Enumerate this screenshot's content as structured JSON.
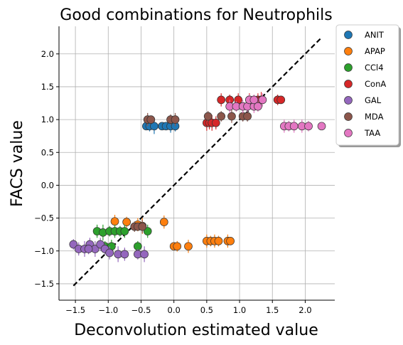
{
  "chart_data": {
    "type": "scatter",
    "title": "Good combinations for Neutrophils",
    "xlabel": "Deconvolution estimated value",
    "ylabel": "FACS value",
    "xlim": [
      -1.75,
      2.45
    ],
    "ylim": [
      -1.75,
      2.42
    ],
    "xticks": [
      -1.5,
      -1.0,
      -0.5,
      0.0,
      0.5,
      1.0,
      1.5,
      2.0
    ],
    "xtick_labels": [
      "−1.5",
      "−1.0",
      "−0.5",
      "0.0",
      "0.5",
      "1.0",
      "1.5",
      "2.0"
    ],
    "yticks": [
      -1.5,
      -1.0,
      -0.5,
      0.0,
      0.5,
      1.0,
      1.5,
      2.0
    ],
    "ytick_labels": [
      "−1.5",
      "−1.0",
      "−0.5",
      "0.0",
      "0.5",
      "1.0",
      "1.5",
      "2.0"
    ],
    "grid": true,
    "legend_position": "outside-top-right",
    "reference_line": {
      "style": "dashed",
      "color": "#000000",
      "x": [
        -1.53,
        2.25
      ],
      "y": [
        -1.53,
        2.25
      ]
    },
    "series": [
      {
        "name": "ANIT",
        "color": "#1f77b4",
        "points": [
          {
            "x": -0.42,
            "y": 0.9,
            "err": 0.05
          },
          {
            "x": -0.37,
            "y": 0.9,
            "err": 0.08
          },
          {
            "x": -0.3,
            "y": 0.9,
            "err": 0.12
          },
          {
            "x": -0.18,
            "y": 0.9,
            "err": 0.06
          },
          {
            "x": -0.12,
            "y": 0.9,
            "err": 0.06
          },
          {
            "x": -0.05,
            "y": 0.9,
            "err": 0.1
          },
          {
            "x": 0.02,
            "y": 0.9,
            "err": 0.08
          }
        ]
      },
      {
        "name": "APAP",
        "color": "#ff7f0e",
        "points": [
          {
            "x": -0.9,
            "y": -0.55,
            "err": 0.1
          },
          {
            "x": -0.72,
            "y": -0.56,
            "err": 0.08
          },
          {
            "x": -0.55,
            "y": -0.6,
            "err": 0.1
          },
          {
            "x": -0.48,
            "y": -0.62,
            "err": 0.12
          },
          {
            "x": -0.15,
            "y": -0.56,
            "err": 0.1
          },
          {
            "x": 0.0,
            "y": -0.93,
            "err": 0.06
          },
          {
            "x": 0.05,
            "y": -0.93,
            "err": 0.08
          },
          {
            "x": 0.22,
            "y": -0.93,
            "err": 0.1
          },
          {
            "x": 0.5,
            "y": -0.85,
            "err": 0.1
          },
          {
            "x": 0.56,
            "y": -0.85,
            "err": 0.08
          },
          {
            "x": 0.62,
            "y": -0.85,
            "err": 0.1
          },
          {
            "x": 0.68,
            "y": -0.85,
            "err": 0.08
          },
          {
            "x": 0.82,
            "y": -0.85,
            "err": 0.1
          },
          {
            "x": 0.86,
            "y": -0.85,
            "err": 0.06
          }
        ]
      },
      {
        "name": "CCl4",
        "color": "#2ca02c",
        "points": [
          {
            "x": -1.17,
            "y": -0.7,
            "err": 0.1
          },
          {
            "x": -1.08,
            "y": -0.72,
            "err": 0.12
          },
          {
            "x": -0.98,
            "y": -0.7,
            "err": 0.08
          },
          {
            "x": -0.9,
            "y": -0.7,
            "err": 0.1
          },
          {
            "x": -0.82,
            "y": -0.7,
            "err": 0.08
          },
          {
            "x": -0.75,
            "y": -0.7,
            "err": 0.1
          },
          {
            "x": -1.05,
            "y": -0.93,
            "err": 0.08
          },
          {
            "x": -0.95,
            "y": -0.93,
            "err": 0.1
          },
          {
            "x": -0.55,
            "y": -0.93,
            "err": 0.08
          },
          {
            "x": -0.4,
            "y": -0.7,
            "err": 0.1
          }
        ]
      },
      {
        "name": "ConA",
        "color": "#d62728",
        "points": [
          {
            "x": 0.5,
            "y": 0.95,
            "err": 0.12
          },
          {
            "x": 0.54,
            "y": 0.95,
            "err": 0.1
          },
          {
            "x": 0.58,
            "y": 0.95,
            "err": 0.12
          },
          {
            "x": 0.64,
            "y": 0.95,
            "err": 0.1
          },
          {
            "x": 0.72,
            "y": 1.3,
            "err": 0.1
          },
          {
            "x": 0.85,
            "y": 1.3,
            "err": 0.08
          },
          {
            "x": 0.98,
            "y": 1.3,
            "err": 0.1
          },
          {
            "x": 1.15,
            "y": 1.3,
            "err": 0.1
          },
          {
            "x": 1.28,
            "y": 1.3,
            "err": 0.1
          },
          {
            "x": 1.33,
            "y": 1.3,
            "err": 0.12
          },
          {
            "x": 1.58,
            "y": 1.3,
            "err": 0.08
          },
          {
            "x": 1.63,
            "y": 1.3,
            "err": 0.06
          }
        ]
      },
      {
        "name": "GAL",
        "color": "#9467bd",
        "points": [
          {
            "x": -1.53,
            "y": -0.9,
            "err": 0.08
          },
          {
            "x": -1.45,
            "y": -0.97,
            "err": 0.1
          },
          {
            "x": -1.36,
            "y": -0.97,
            "err": 0.12
          },
          {
            "x": -1.28,
            "y": -0.9,
            "err": 0.1
          },
          {
            "x": -1.2,
            "y": -0.97,
            "err": 0.12
          },
          {
            "x": -1.12,
            "y": -0.9,
            "err": 0.1
          },
          {
            "x": -1.05,
            "y": -0.97,
            "err": 0.08
          },
          {
            "x": -0.98,
            "y": -1.03,
            "err": 0.1
          },
          {
            "x": -0.85,
            "y": -1.05,
            "err": 0.12
          },
          {
            "x": -0.75,
            "y": -1.05,
            "err": 0.1
          },
          {
            "x": -0.55,
            "y": -1.05,
            "err": 0.08
          },
          {
            "x": -0.45,
            "y": -1.05,
            "err": 0.12
          },
          {
            "x": -1.3,
            "y": -0.97,
            "err": 0.08
          }
        ]
      },
      {
        "name": "MDA",
        "color": "#8c564b",
        "points": [
          {
            "x": -0.4,
            "y": 1.0,
            "err": 0.1
          },
          {
            "x": -0.35,
            "y": 1.0,
            "err": 0.06
          },
          {
            "x": -0.05,
            "y": 1.0,
            "err": 0.08
          },
          {
            "x": 0.02,
            "y": 1.0,
            "err": 0.1
          },
          {
            "x": -0.6,
            "y": -0.63,
            "err": 0.08
          },
          {
            "x": -0.55,
            "y": -0.63,
            "err": 0.06
          },
          {
            "x": -0.48,
            "y": -0.63,
            "err": 0.1
          },
          {
            "x": 0.52,
            "y": 1.05,
            "err": 0.08
          },
          {
            "x": 0.72,
            "y": 1.05,
            "err": 0.08
          },
          {
            "x": 0.88,
            "y": 1.05,
            "err": 0.1
          },
          {
            "x": 1.05,
            "y": 1.05,
            "err": 0.08
          },
          {
            "x": 1.12,
            "y": 1.05,
            "err": 0.08
          }
        ]
      },
      {
        "name": "TAA",
        "color": "#e377c2",
        "points": [
          {
            "x": 0.85,
            "y": 1.2,
            "err": 0.1
          },
          {
            "x": 0.95,
            "y": 1.2,
            "err": 0.08
          },
          {
            "x": 1.05,
            "y": 1.2,
            "err": 0.1
          },
          {
            "x": 1.12,
            "y": 1.2,
            "err": 0.08
          },
          {
            "x": 1.22,
            "y": 1.2,
            "err": 0.1
          },
          {
            "x": 1.35,
            "y": 1.3,
            "err": 0.1
          },
          {
            "x": 1.15,
            "y": 1.3,
            "err": 0.08
          },
          {
            "x": 1.22,
            "y": 1.3,
            "err": 0.08
          },
          {
            "x": 1.28,
            "y": 1.2,
            "err": 0.08
          },
          {
            "x": 1.68,
            "y": 0.9,
            "err": 0.1
          },
          {
            "x": 1.75,
            "y": 0.9,
            "err": 0.08
          },
          {
            "x": 1.83,
            "y": 0.9,
            "err": 0.1
          },
          {
            "x": 1.95,
            "y": 0.9,
            "err": 0.1
          },
          {
            "x": 2.05,
            "y": 0.9,
            "err": 0.08
          },
          {
            "x": 2.25,
            "y": 0.9,
            "err": 0.06
          }
        ]
      }
    ]
  }
}
